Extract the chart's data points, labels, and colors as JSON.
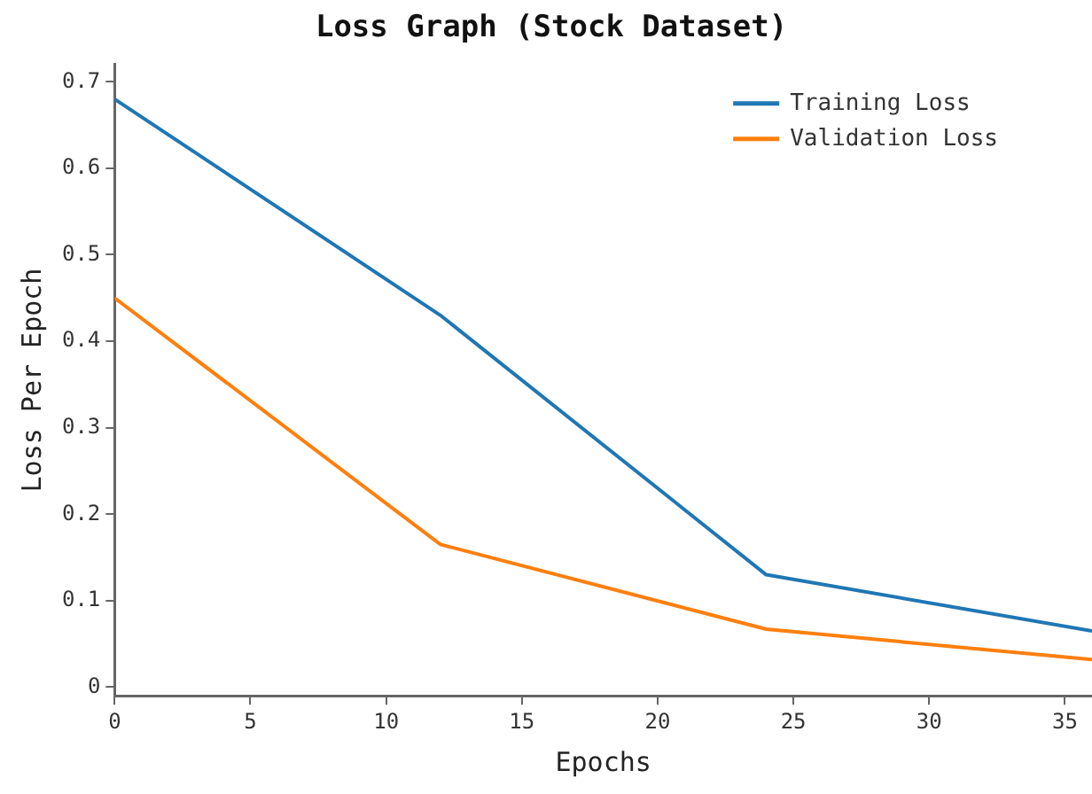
{
  "chart_data": {
    "type": "line",
    "title": "Loss Graph (Stock Dataset)",
    "xlabel": "Epochs",
    "ylabel": "Loss Per Epoch",
    "x": [
      0,
      12,
      24,
      36
    ],
    "series": [
      {
        "name": "Training Loss",
        "color": "#1f77b4",
        "values": [
          0.68,
          0.43,
          0.13,
          0.065
        ]
      },
      {
        "name": "Validation Loss",
        "color": "#ff7f0e",
        "values": [
          0.45,
          0.165,
          0.067,
          0.032
        ]
      }
    ],
    "xlim": [
      0,
      36
    ],
    "xticks": [
      0,
      5,
      10,
      15,
      20,
      25,
      30,
      35
    ],
    "ylim": [
      -0.01,
      0.72
    ],
    "yticks": [
      0,
      0.1,
      0.2,
      0.3,
      0.4,
      0.5,
      0.6,
      0.7
    ],
    "grid": false,
    "legend": "top right",
    "marker": "none",
    "line_style": "solid"
  }
}
